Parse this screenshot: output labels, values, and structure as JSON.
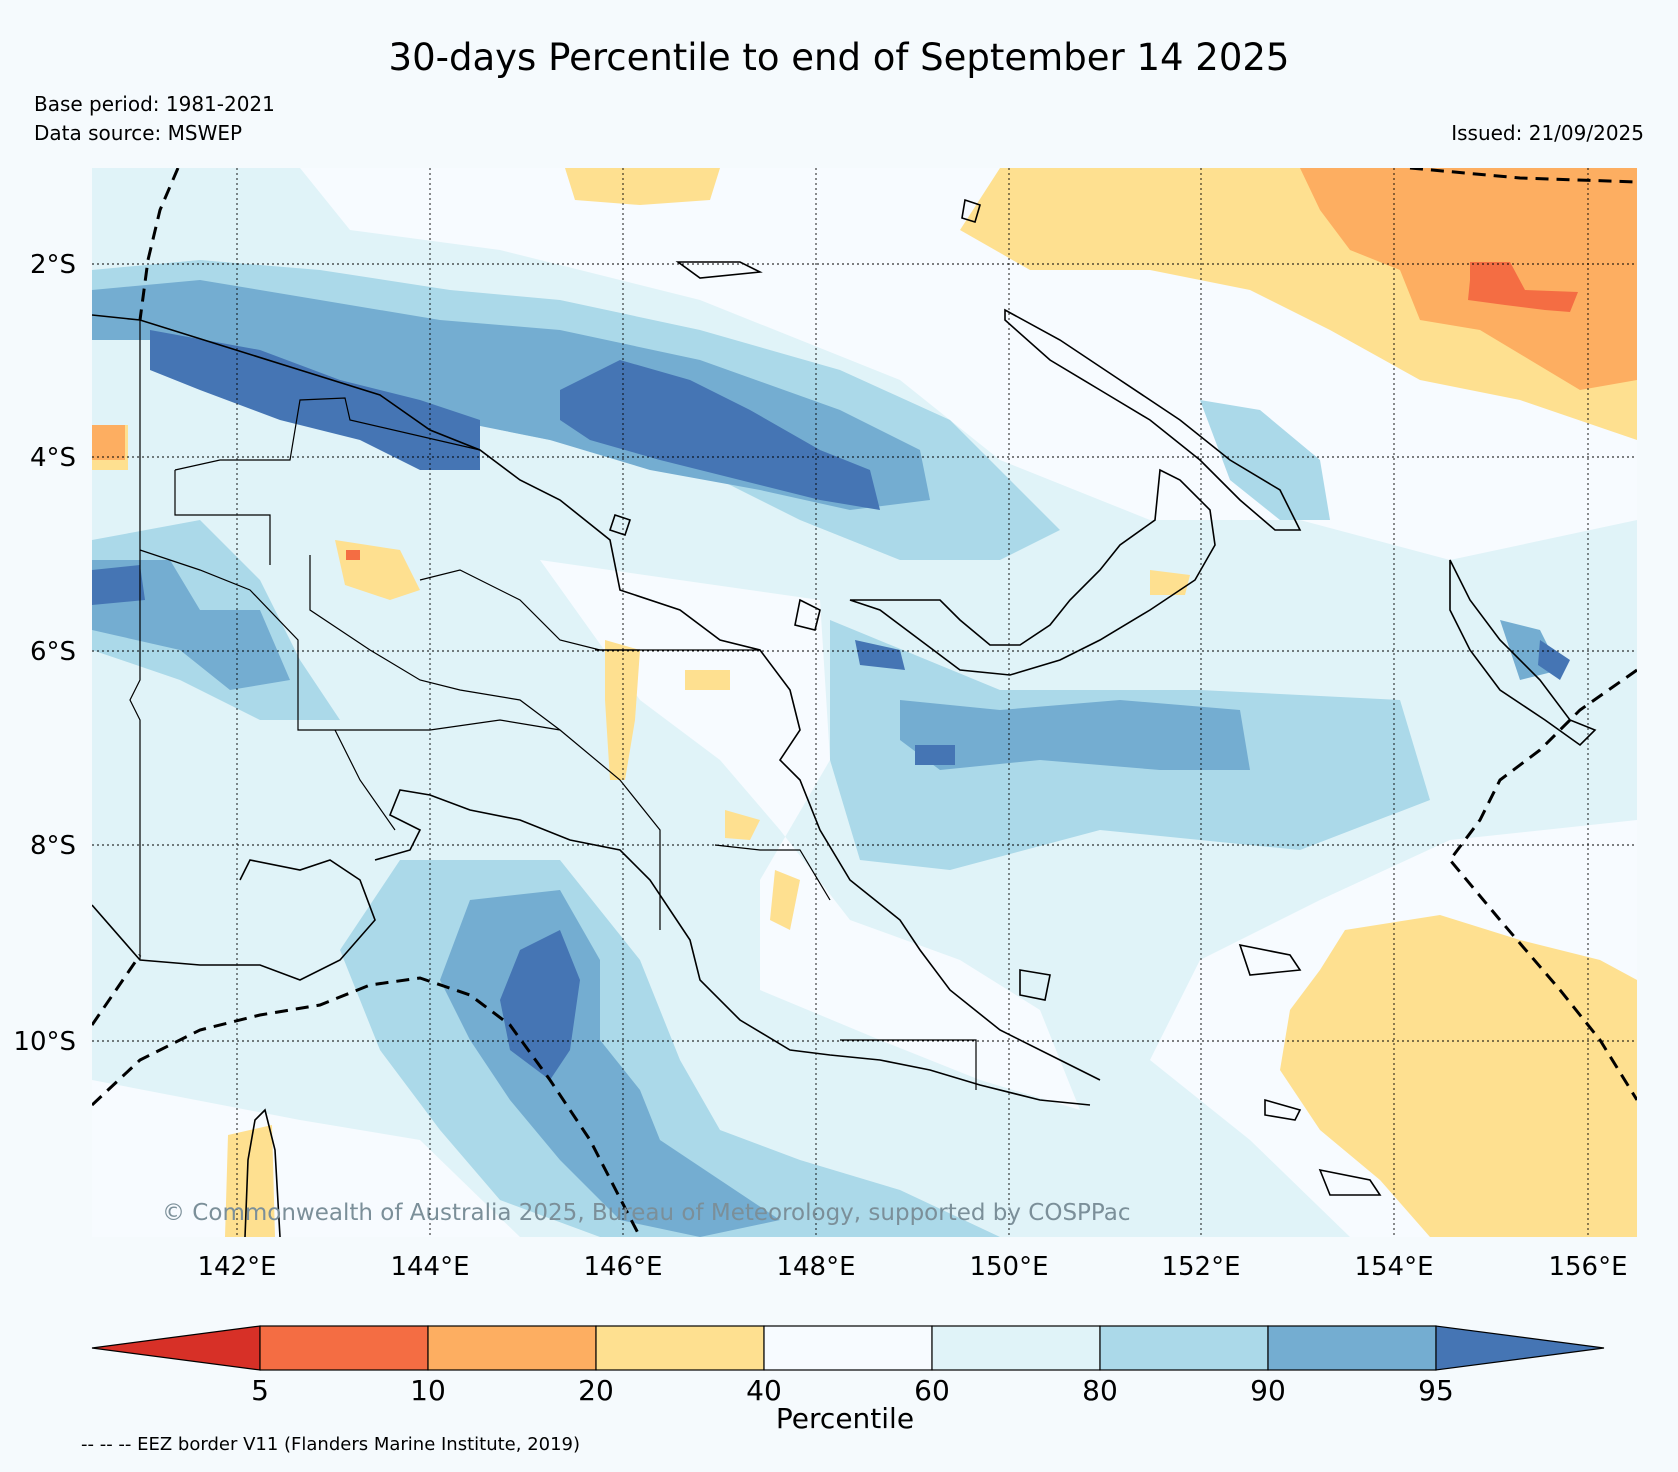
{
  "header": {
    "title": "30-days Percentile to end of September 14 2025",
    "base_period": "Base period: 1981-2021",
    "data_source": "Data source: MSWEP",
    "issued": "Issued: 21/09/2025"
  },
  "map": {
    "lat_labels": [
      "2°S",
      "4°S",
      "6°S",
      "8°S",
      "10°S"
    ],
    "lon_labels": [
      "142°E",
      "144°E",
      "146°E",
      "148°E",
      "150°E",
      "152°E",
      "154°E",
      "156°E"
    ],
    "copyright": "© Commonwealth of Australia 2025, Bureau of Meteorology, supported by COSPPac",
    "colors": {
      "p0_5": "#d73027",
      "p5_10": "#f46d43",
      "p10_20": "#fdae61",
      "p20_40": "#fee090",
      "p40_60": "#f7fbff",
      "p60_80": "#e0f3f8",
      "p80_90": "#abd9e9",
      "p90_95": "#74add1",
      "p95_100": "#4575b4"
    }
  },
  "colorbar": {
    "title": "Percentile",
    "ticks": [
      "5",
      "10",
      "20",
      "40",
      "60",
      "80",
      "90",
      "95"
    ],
    "eez_note": "-- -- -- EEZ border V11 (Flanders Marine Institute, 2019)"
  }
}
